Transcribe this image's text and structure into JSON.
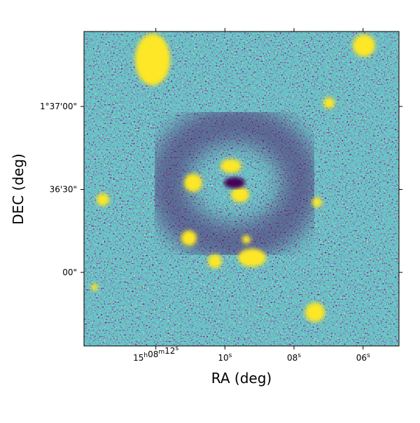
{
  "chart_data": {
    "type": "image",
    "xlabel": "RA (deg)",
    "ylabel": "DEC (deg)",
    "xlim": [
      14.08,
      4.96
    ],
    "xticks": [
      {
        "value": 12,
        "label": "15h08m12s"
      },
      {
        "value": 10,
        "label": "10s"
      },
      {
        "value": 8,
        "label": "08s"
      },
      {
        "value": 6,
        "label": "06s"
      }
    ],
    "ylim": [
      -26.6,
      87.1
    ],
    "yticks": [
      {
        "value": 60,
        "label": "1°37'00\""
      },
      {
        "value": 30,
        "label": "36'30\""
      },
      {
        "value": 0,
        "label": "00\""
      }
    ],
    "colormap": "viridis"
  }
}
